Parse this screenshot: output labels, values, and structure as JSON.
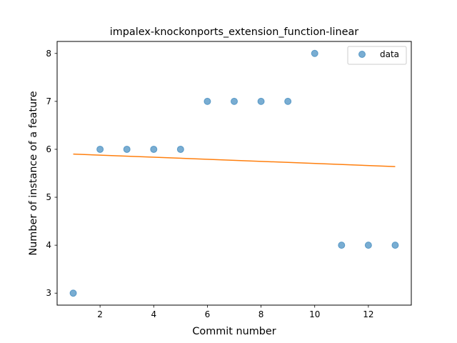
{
  "chart_data": {
    "type": "scatter",
    "title": "impalex-knockonports_extension_function-linear",
    "xlabel": "Commit number",
    "ylabel": "Number of instance of a feature",
    "xlim": [
      0.4,
      13.6
    ],
    "ylim": [
      2.75,
      8.25
    ],
    "xticks": [
      2,
      4,
      6,
      8,
      10,
      12
    ],
    "yticks": [
      3,
      4,
      5,
      6,
      7,
      8
    ],
    "legend": {
      "placement": "top-right",
      "entries": [
        "data"
      ]
    },
    "grid": false,
    "colors": {
      "points": "#1f77b4",
      "line": "#ff7f0e"
    },
    "series": [
      {
        "name": "data",
        "kind": "scatter",
        "x": [
          1,
          2,
          3,
          4,
          5,
          6,
          7,
          8,
          9,
          10,
          11,
          12,
          13
        ],
        "y": [
          3,
          6,
          6,
          6,
          6,
          7,
          7,
          7,
          7,
          8,
          4,
          4,
          4
        ]
      },
      {
        "kind": "line",
        "x": [
          1,
          13
        ],
        "y": [
          5.9,
          5.64
        ]
      }
    ]
  }
}
